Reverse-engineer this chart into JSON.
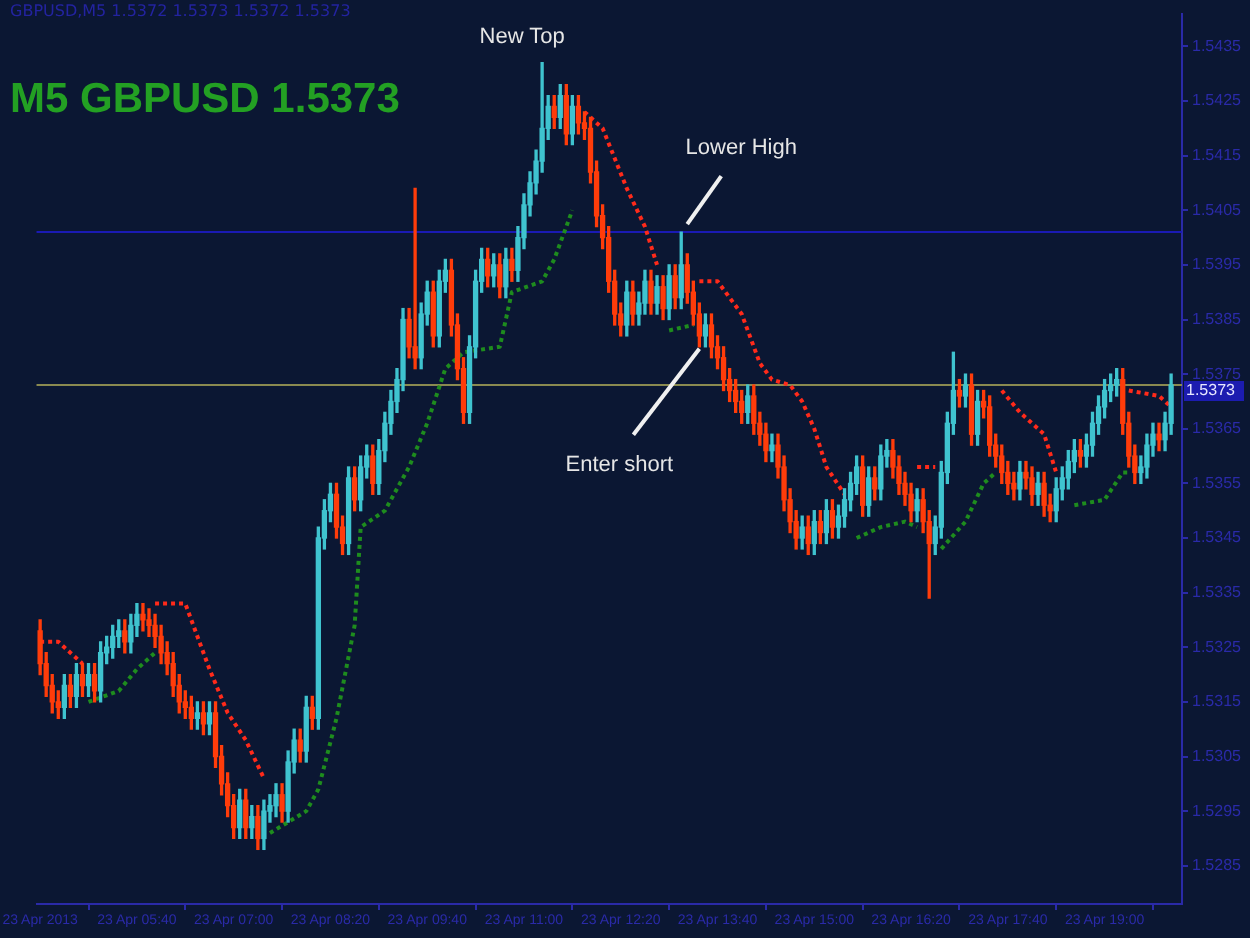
{
  "chart_data": {
    "type": "candlestick",
    "title": "M5 GBPUSD 1.5373",
    "subtitle": "GBPUSD,M5 1.5372 1.5373 1.5372 1.5373",
    "x": [
      "2013-04-23T04:20",
      "2013-04-23T04:25",
      "2013-04-23T04:30",
      "2013-04-23T04:35",
      "2013-04-23T04:40",
      "2013-04-23T04:45",
      "2013-04-23T04:50",
      "2013-04-23T04:55",
      "2013-04-23T05:00",
      "2013-04-23T05:05",
      "2013-04-23T05:10",
      "2013-04-23T05:15",
      "2013-04-23T05:20",
      "2013-04-23T05:25",
      "2013-04-23T05:30",
      "2013-04-23T05:35",
      "2013-04-23T05:40",
      "2013-04-23T05:45",
      "2013-04-23T05:50",
      "2013-04-23T05:55",
      "2013-04-23T06:00",
      "2013-04-23T06:05",
      "2013-04-23T06:10",
      "2013-04-23T06:15",
      "2013-04-23T06:20",
      "2013-04-23T06:25",
      "2013-04-23T06:30",
      "2013-04-23T06:35",
      "2013-04-23T06:40",
      "2013-04-23T06:45",
      "2013-04-23T06:50",
      "2013-04-23T06:55",
      "2013-04-23T07:00",
      "2013-04-23T07:05",
      "2013-04-23T07:10",
      "2013-04-23T07:15",
      "2013-04-23T07:20",
      "2013-04-23T07:25",
      "2013-04-23T07:30",
      "2013-04-23T07:35",
      "2013-04-23T07:40",
      "2013-04-23T07:45",
      "2013-04-23T07:50",
      "2013-04-23T07:55",
      "2013-04-23T08:00",
      "2013-04-23T08:05",
      "2013-04-23T08:10",
      "2013-04-23T08:15",
      "2013-04-23T08:20",
      "2013-04-23T08:25",
      "2013-04-23T08:30",
      "2013-04-23T08:35",
      "2013-04-23T08:40",
      "2013-04-23T08:45",
      "2013-04-23T08:50",
      "2013-04-23T08:55",
      "2013-04-23T09:00",
      "2013-04-23T09:05",
      "2013-04-23T09:10",
      "2013-04-23T09:15",
      "2013-04-23T09:20",
      "2013-04-23T09:25",
      "2013-04-23T09:30",
      "2013-04-23T09:35",
      "2013-04-23T09:40",
      "2013-04-23T09:45",
      "2013-04-23T09:50",
      "2013-04-23T09:55",
      "2013-04-23T10:00",
      "2013-04-23T10:05",
      "2013-04-23T10:10",
      "2013-04-23T10:15",
      "2013-04-23T10:20",
      "2013-04-23T10:25",
      "2013-04-23T10:30",
      "2013-04-23T10:35",
      "2013-04-23T10:40",
      "2013-04-23T10:45",
      "2013-04-23T10:50",
      "2013-04-23T10:55",
      "2013-04-23T11:00",
      "2013-04-23T11:05",
      "2013-04-23T11:10",
      "2013-04-23T11:15",
      "2013-04-23T11:20",
      "2013-04-23T11:25",
      "2013-04-23T11:30",
      "2013-04-23T11:35",
      "2013-04-23T11:40",
      "2013-04-23T11:45",
      "2013-04-23T11:50",
      "2013-04-23T11:55",
      "2013-04-23T12:00",
      "2013-04-23T12:05",
      "2013-04-23T12:10",
      "2013-04-23T12:15",
      "2013-04-23T12:20",
      "2013-04-23T12:25",
      "2013-04-23T12:30",
      "2013-04-23T12:35",
      "2013-04-23T12:40",
      "2013-04-23T12:45",
      "2013-04-23T12:50",
      "2013-04-23T12:55",
      "2013-04-23T13:00",
      "2013-04-23T13:05",
      "2013-04-23T13:10",
      "2013-04-23T13:15",
      "2013-04-23T13:20",
      "2013-04-23T13:25",
      "2013-04-23T13:30",
      "2013-04-23T13:35",
      "2013-04-23T13:40",
      "2013-04-23T13:45",
      "2013-04-23T13:50",
      "2013-04-23T13:55",
      "2013-04-23T14:00",
      "2013-04-23T14:05",
      "2013-04-23T14:10",
      "2013-04-23T14:15",
      "2013-04-23T14:20",
      "2013-04-23T14:25",
      "2013-04-23T14:30",
      "2013-04-23T14:35",
      "2013-04-23T14:40",
      "2013-04-23T14:45",
      "2013-04-23T14:50",
      "2013-04-23T14:55",
      "2013-04-23T15:00",
      "2013-04-23T15:05",
      "2013-04-23T15:10",
      "2013-04-23T15:15",
      "2013-04-23T15:20",
      "2013-04-23T15:25",
      "2013-04-23T15:30",
      "2013-04-23T15:35",
      "2013-04-23T15:40",
      "2013-04-23T15:45",
      "2013-04-23T15:50",
      "2013-04-23T15:55",
      "2013-04-23T16:00",
      "2013-04-23T16:05",
      "2013-04-23T16:10",
      "2013-04-23T16:15",
      "2013-04-23T16:20",
      "2013-04-23T16:25",
      "2013-04-23T16:30",
      "2013-04-23T16:35",
      "2013-04-23T16:40",
      "2013-04-23T16:45",
      "2013-04-23T16:50",
      "2013-04-23T16:55",
      "2013-04-23T17:00",
      "2013-04-23T17:05",
      "2013-04-23T17:10",
      "2013-04-23T17:15",
      "2013-04-23T17:20",
      "2013-04-23T17:25",
      "2013-04-23T17:30",
      "2013-04-23T17:35",
      "2013-04-23T17:40",
      "2013-04-23T17:45",
      "2013-04-23T17:50",
      "2013-04-23T17:55",
      "2013-04-23T18:00",
      "2013-04-23T18:05",
      "2013-04-23T18:10",
      "2013-04-23T18:15",
      "2013-04-23T18:20",
      "2013-04-23T18:25",
      "2013-04-23T18:30",
      "2013-04-23T18:35",
      "2013-04-23T18:40",
      "2013-04-23T18:45",
      "2013-04-23T18:50",
      "2013-04-23T18:55",
      "2013-04-23T19:00",
      "2013-04-23T19:05",
      "2013-04-23T19:10",
      "2013-04-23T19:15",
      "2013-04-23T19:20",
      "2013-04-23T19:25",
      "2013-04-23T19:30",
      "2013-04-23T19:35",
      "2013-04-23T19:40",
      "2013-04-23T19:45",
      "2013-04-23T19:50",
      "2013-04-23T19:55"
    ],
    "ohlc": [
      [
        1.5328,
        1.533,
        1.532,
        1.5322
      ],
      [
        1.5322,
        1.5324,
        1.5316,
        1.5318
      ],
      [
        1.5318,
        1.532,
        1.5313,
        1.5315
      ],
      [
        1.5315,
        1.5317,
        1.5312,
        1.5314
      ],
      [
        1.5314,
        1.532,
        1.5312,
        1.5318
      ],
      [
        1.5318,
        1.532,
        1.5314,
        1.5316
      ],
      [
        1.5316,
        1.5322,
        1.5314,
        1.532
      ],
      [
        1.532,
        1.5322,
        1.5316,
        1.5318
      ],
      [
        1.5318,
        1.5322,
        1.5316,
        1.532
      ],
      [
        1.532,
        1.5322,
        1.5315,
        1.5317
      ],
      [
        1.5317,
        1.5326,
        1.5315,
        1.5324
      ],
      [
        1.5324,
        1.5327,
        1.5322,
        1.5325
      ],
      [
        1.5325,
        1.5329,
        1.5323,
        1.5327
      ],
      [
        1.5327,
        1.533,
        1.5325,
        1.5328
      ],
      [
        1.5328,
        1.533,
        1.5324,
        1.5326
      ],
      [
        1.5326,
        1.5331,
        1.5324,
        1.5329
      ],
      [
        1.5329,
        1.5333,
        1.5327,
        1.5331
      ],
      [
        1.5331,
        1.5333,
        1.5328,
        1.533
      ],
      [
        1.533,
        1.5332,
        1.5327,
        1.5329
      ],
      [
        1.5329,
        1.5331,
        1.5325,
        1.5327
      ],
      [
        1.5327,
        1.5329,
        1.5322,
        1.5324
      ],
      [
        1.5324,
        1.5326,
        1.532,
        1.5322
      ],
      [
        1.5322,
        1.5324,
        1.5316,
        1.5318
      ],
      [
        1.5318,
        1.532,
        1.5313,
        1.5315
      ],
      [
        1.5315,
        1.5317,
        1.5312,
        1.5314
      ],
      [
        1.5314,
        1.5316,
        1.531,
        1.5312
      ],
      [
        1.5312,
        1.5315,
        1.531,
        1.5313
      ],
      [
        1.5313,
        1.5315,
        1.5309,
        1.5311
      ],
      [
        1.5311,
        1.5315,
        1.5309,
        1.5313
      ],
      [
        1.5313,
        1.5315,
        1.5303,
        1.5305
      ],
      [
        1.5305,
        1.5307,
        1.5298,
        1.53
      ],
      [
        1.53,
        1.5302,
        1.5294,
        1.5296
      ],
      [
        1.5296,
        1.5298,
        1.529,
        1.5292
      ],
      [
        1.5292,
        1.5299,
        1.529,
        1.5297
      ],
      [
        1.5297,
        1.5299,
        1.529,
        1.5292
      ],
      [
        1.5292,
        1.5296,
        1.529,
        1.5294
      ],
      [
        1.5294,
        1.5296,
        1.5288,
        1.529
      ],
      [
        1.529,
        1.5297,
        1.5288,
        1.5295
      ],
      [
        1.5295,
        1.5298,
        1.5293,
        1.5296
      ],
      [
        1.5296,
        1.53,
        1.5294,
        1.5298
      ],
      [
        1.5298,
        1.53,
        1.5293,
        1.5295
      ],
      [
        1.5295,
        1.5306,
        1.5293,
        1.5304
      ],
      [
        1.5304,
        1.531,
        1.5302,
        1.5308
      ],
      [
        1.5308,
        1.531,
        1.5304,
        1.5306
      ],
      [
        1.5306,
        1.5316,
        1.5304,
        1.5314
      ],
      [
        1.5314,
        1.5316,
        1.531,
        1.5312
      ],
      [
        1.5312,
        1.5347,
        1.531,
        1.5345
      ],
      [
        1.5345,
        1.5352,
        1.5343,
        1.535
      ],
      [
        1.535,
        1.5355,
        1.5348,
        1.5353
      ],
      [
        1.5353,
        1.5355,
        1.5345,
        1.5347
      ],
      [
        1.5347,
        1.5349,
        1.5342,
        1.5344
      ],
      [
        1.5344,
        1.5358,
        1.5342,
        1.5356
      ],
      [
        1.5356,
        1.5358,
        1.535,
        1.5352
      ],
      [
        1.5352,
        1.536,
        1.535,
        1.5358
      ],
      [
        1.5358,
        1.5362,
        1.5356,
        1.536
      ],
      [
        1.536,
        1.5362,
        1.5353,
        1.5355
      ],
      [
        1.5355,
        1.5363,
        1.5353,
        1.5361
      ],
      [
        1.5361,
        1.5368,
        1.5359,
        1.5366
      ],
      [
        1.5366,
        1.5372,
        1.5364,
        1.537
      ],
      [
        1.537,
        1.5376,
        1.5368,
        1.5374
      ],
      [
        1.5374,
        1.5387,
        1.5372,
        1.5385
      ],
      [
        1.5385,
        1.5387,
        1.5378,
        1.538
      ],
      [
        1.538,
        1.5409,
        1.5376,
        1.5378
      ],
      [
        1.5378,
        1.5388,
        1.5376,
        1.5386
      ],
      [
        1.5386,
        1.5392,
        1.5384,
        1.539
      ],
      [
        1.539,
        1.5392,
        1.538,
        1.5382
      ],
      [
        1.5382,
        1.5394,
        1.538,
        1.5392
      ],
      [
        1.5392,
        1.5396,
        1.539,
        1.5394
      ],
      [
        1.5394,
        1.5396,
        1.5382,
        1.5384
      ],
      [
        1.5384,
        1.5386,
        1.5374,
        1.5376
      ],
      [
        1.5376,
        1.5378,
        1.5366,
        1.5368
      ],
      [
        1.5368,
        1.5382,
        1.5366,
        1.538
      ],
      [
        1.538,
        1.5394,
        1.5378,
        1.5392
      ],
      [
        1.5392,
        1.5398,
        1.539,
        1.5396
      ],
      [
        1.5396,
        1.5398,
        1.5391,
        1.5393
      ],
      [
        1.5393,
        1.5397,
        1.5391,
        1.5395
      ],
      [
        1.5395,
        1.5397,
        1.5389,
        1.5391
      ],
      [
        1.5391,
        1.5398,
        1.5389,
        1.5396
      ],
      [
        1.5396,
        1.5398,
        1.5392,
        1.5394
      ],
      [
        1.5394,
        1.5402,
        1.5392,
        1.54
      ],
      [
        1.54,
        1.5408,
        1.5398,
        1.5406
      ],
      [
        1.5406,
        1.5412,
        1.5404,
        1.541
      ],
      [
        1.541,
        1.5416,
        1.5408,
        1.5414
      ],
      [
        1.5414,
        1.5432,
        1.5412,
        1.542
      ],
      [
        1.542,
        1.5426,
        1.5418,
        1.5424
      ],
      [
        1.5424,
        1.5426,
        1.542,
        1.5422
      ],
      [
        1.5422,
        1.5428,
        1.542,
        1.5426
      ],
      [
        1.5426,
        1.5428,
        1.5417,
        1.5419
      ],
      [
        1.5419,
        1.5426,
        1.5417,
        1.5424
      ],
      [
        1.5424,
        1.5426,
        1.5419,
        1.5421
      ],
      [
        1.5421,
        1.5423,
        1.5418,
        1.542
      ],
      [
        1.542,
        1.5422,
        1.541,
        1.5412
      ],
      [
        1.5412,
        1.5414,
        1.5402,
        1.5404
      ],
      [
        1.5404,
        1.5406,
        1.5398,
        1.54
      ],
      [
        1.54,
        1.5402,
        1.539,
        1.5392
      ],
      [
        1.5392,
        1.5394,
        1.5384,
        1.5386
      ],
      [
        1.5386,
        1.5388,
        1.5382,
        1.5384
      ],
      [
        1.5384,
        1.5392,
        1.5382,
        1.539
      ],
      [
        1.539,
        1.5392,
        1.5384,
        1.5386
      ],
      [
        1.5386,
        1.539,
        1.5384,
        1.5388
      ],
      [
        1.5388,
        1.5394,
        1.5386,
        1.5392
      ],
      [
        1.5392,
        1.5394,
        1.5386,
        1.5388
      ],
      [
        1.5388,
        1.5393,
        1.5386,
        1.5391
      ],
      [
        1.5391,
        1.5393,
        1.5385,
        1.5387
      ],
      [
        1.5387,
        1.5395,
        1.5385,
        1.5393
      ],
      [
        1.5393,
        1.5395,
        1.5387,
        1.5389
      ],
      [
        1.5389,
        1.5401,
        1.5387,
        1.5395
      ],
      [
        1.5395,
        1.5397,
        1.5388,
        1.539
      ],
      [
        1.539,
        1.5392,
        1.5384,
        1.5386
      ],
      [
        1.5386,
        1.5388,
        1.538,
        1.5382
      ],
      [
        1.5382,
        1.5386,
        1.538,
        1.5384
      ],
      [
        1.5384,
        1.5386,
        1.5378,
        1.538
      ],
      [
        1.538,
        1.5382,
        1.5376,
        1.5378
      ],
      [
        1.5378,
        1.538,
        1.5372,
        1.5374
      ],
      [
        1.5374,
        1.5376,
        1.537,
        1.5372
      ],
      [
        1.5372,
        1.5374,
        1.5368,
        1.537
      ],
      [
        1.537,
        1.5372,
        1.5366,
        1.5368
      ],
      [
        1.5368,
        1.5373,
        1.5366,
        1.5371
      ],
      [
        1.5371,
        1.5373,
        1.5364,
        1.5366
      ],
      [
        1.5366,
        1.5368,
        1.5362,
        1.5364
      ],
      [
        1.5364,
        1.5366,
        1.5359,
        1.5361
      ],
      [
        1.5361,
        1.5364,
        1.5359,
        1.5362
      ],
      [
        1.5362,
        1.5364,
        1.5356,
        1.5358
      ],
      [
        1.5358,
        1.536,
        1.535,
        1.5352
      ],
      [
        1.5352,
        1.5354,
        1.5346,
        1.5348
      ],
      [
        1.5348,
        1.535,
        1.5343,
        1.5345
      ],
      [
        1.5345,
        1.5349,
        1.5343,
        1.5347
      ],
      [
        1.5347,
        1.5349,
        1.5342,
        1.5344
      ],
      [
        1.5344,
        1.535,
        1.5342,
        1.5348
      ],
      [
        1.5348,
        1.535,
        1.5344,
        1.5346
      ],
      [
        1.5346,
        1.5352,
        1.5344,
        1.535
      ],
      [
        1.535,
        1.5352,
        1.5345,
        1.5347
      ],
      [
        1.5347,
        1.5351,
        1.5345,
        1.5349
      ],
      [
        1.5349,
        1.5354,
        1.5347,
        1.5352
      ],
      [
        1.5352,
        1.5357,
        1.535,
        1.5355
      ],
      [
        1.5355,
        1.536,
        1.5353,
        1.5358
      ],
      [
        1.5358,
        1.536,
        1.5349,
        1.5351
      ],
      [
        1.5351,
        1.5358,
        1.5349,
        1.5356
      ],
      [
        1.5356,
        1.5358,
        1.5352,
        1.5354
      ],
      [
        1.5354,
        1.5362,
        1.5352,
        1.536
      ],
      [
        1.536,
        1.5363,
        1.5358,
        1.5361
      ],
      [
        1.5361,
        1.5363,
        1.5356,
        1.5358
      ],
      [
        1.5358,
        1.536,
        1.5353,
        1.5355
      ],
      [
        1.5355,
        1.5357,
        1.5351,
        1.5353
      ],
      [
        1.5353,
        1.5355,
        1.5348,
        1.535
      ],
      [
        1.535,
        1.5354,
        1.5348,
        1.5352
      ],
      [
        1.5352,
        1.5354,
        1.5346,
        1.5348
      ],
      [
        1.5348,
        1.535,
        1.5334,
        1.5344
      ],
      [
        1.5344,
        1.5349,
        1.5342,
        1.5347
      ],
      [
        1.5347,
        1.5359,
        1.5345,
        1.5357
      ],
      [
        1.5357,
        1.5368,
        1.5355,
        1.5366
      ],
      [
        1.5366,
        1.5379,
        1.5364,
        1.5372
      ],
      [
        1.5372,
        1.5374,
        1.5369,
        1.5371
      ],
      [
        1.5371,
        1.5375,
        1.5369,
        1.5373
      ],
      [
        1.5373,
        1.5375,
        1.5362,
        1.5364
      ],
      [
        1.5364,
        1.5372,
        1.5362,
        1.537
      ],
      [
        1.537,
        1.5372,
        1.5367,
        1.5369
      ],
      [
        1.5369,
        1.5371,
        1.536,
        1.5362
      ],
      [
        1.5362,
        1.5364,
        1.5358,
        1.536
      ],
      [
        1.536,
        1.5362,
        1.5355,
        1.5357
      ],
      [
        1.5357,
        1.5359,
        1.5353,
        1.5355
      ],
      [
        1.5355,
        1.5357,
        1.5352,
        1.5354
      ],
      [
        1.5354,
        1.5359,
        1.5352,
        1.5357
      ],
      [
        1.5357,
        1.5359,
        1.5354,
        1.5356
      ],
      [
        1.5356,
        1.5358,
        1.5351,
        1.5353
      ],
      [
        1.5353,
        1.5357,
        1.5351,
        1.5355
      ],
      [
        1.5355,
        1.5357,
        1.5349,
        1.5351
      ],
      [
        1.5351,
        1.5353,
        1.5348,
        1.535
      ],
      [
        1.535,
        1.5356,
        1.5348,
        1.5354
      ],
      [
        1.5354,
        1.5358,
        1.5352,
        1.5356
      ],
      [
        1.5356,
        1.5361,
        1.5354,
        1.5359
      ],
      [
        1.5359,
        1.5363,
        1.5357,
        1.5361
      ],
      [
        1.5361,
        1.5363,
        1.5358,
        1.536
      ],
      [
        1.536,
        1.5364,
        1.5358,
        1.5362
      ],
      [
        1.5362,
        1.5368,
        1.536,
        1.5366
      ],
      [
        1.5366,
        1.5371,
        1.5364,
        1.5369
      ],
      [
        1.5369,
        1.5374,
        1.5367,
        1.5372
      ],
      [
        1.5372,
        1.5375,
        1.537,
        1.5373
      ],
      [
        1.5373,
        1.5376,
        1.5371,
        1.5374
      ],
      [
        1.5374,
        1.5376,
        1.5364,
        1.5366
      ],
      [
        1.5366,
        1.5368,
        1.5358,
        1.536
      ],
      [
        1.536,
        1.5362,
        1.5355,
        1.5357
      ],
      [
        1.5357,
        1.536,
        1.5355,
        1.5358
      ],
      [
        1.5358,
        1.5364,
        1.5356,
        1.5362
      ],
      [
        1.5362,
        1.5366,
        1.536,
        1.5364
      ],
      [
        1.5364,
        1.5366,
        1.5361,
        1.5363
      ],
      [
        1.5363,
        1.5368,
        1.5361,
        1.5366
      ],
      [
        1.5366,
        1.5375,
        1.5364,
        1.5373
      ]
    ],
    "series": [
      {
        "type": "line",
        "color": "#ff2a1a",
        "x": [
          "2013-04-23T04:20",
          "2013-04-23T04:35",
          "2013-04-23T04:45",
          "2013-04-23T04:55"
        ],
        "values": [
          1.5326,
          1.5326,
          1.5324,
          1.5322
        ]
      },
      {
        "type": "line",
        "color": "#ff2a1a",
        "x": [
          "2013-04-23T05:55",
          "2013-04-23T06:20",
          "2013-04-23T06:40",
          "2013-04-23T06:55",
          "2013-04-23T07:10",
          "2013-04-23T07:25"
        ],
        "values": [
          1.5333,
          1.5333,
          1.5321,
          1.5313,
          1.5308,
          1.5301
        ]
      },
      {
        "type": "line",
        "color": "#ff2a1a",
        "x": [
          "2013-04-23T11:50",
          "2013-04-23T12:05",
          "2013-04-23T12:25",
          "2013-04-23T12:40",
          "2013-04-23T12:50"
        ],
        "values": [
          1.5423,
          1.542,
          1.5409,
          1.5402,
          1.5395
        ]
      },
      {
        "type": "line",
        "color": "#ff2a1a",
        "x": [
          "2013-04-23T13:25",
          "2013-04-23T13:40",
          "2013-04-23T14:00",
          "2013-04-23T14:15",
          "2013-04-23T14:25",
          "2013-04-23T14:40",
          "2013-04-23T14:50",
          "2013-04-23T15:00",
          "2013-04-23T15:10",
          "2013-04-23T15:25"
        ],
        "values": [
          1.5392,
          1.5392,
          1.5386,
          1.5377,
          1.5374,
          1.5373,
          1.537,
          1.5365,
          1.5358,
          1.5353
        ]
      },
      {
        "type": "line",
        "color": "#ff2a1a",
        "x": [
          "2013-04-23T16:25",
          "2013-04-23T16:40"
        ],
        "values": [
          1.5358,
          1.5358
        ]
      },
      {
        "type": "line",
        "color": "#ff2a1a",
        "x": [
          "2013-04-23T17:35",
          "2013-04-23T17:50",
          "2013-04-23T17:55",
          "2013-04-23T18:10",
          "2013-04-23T18:20"
        ],
        "values": [
          1.5372,
          1.5368,
          1.5367,
          1.5364,
          1.5357
        ]
      },
      {
        "type": "line",
        "color": "#ff2a1a",
        "x": [
          "2013-04-23T19:20",
          "2013-04-23T19:45",
          "2013-04-23T19:55"
        ],
        "values": [
          1.5372,
          1.5371,
          1.5369
        ]
      },
      {
        "type": "line",
        "color": "#1e8c1e",
        "x": [
          "2013-04-23T05:00",
          "2013-04-23T05:25",
          "2013-04-23T05:40",
          "2013-04-23T05:55"
        ],
        "values": [
          1.5315,
          1.5317,
          1.5321,
          1.5324
        ]
      },
      {
        "type": "line",
        "color": "#1e8c1e",
        "x": [
          "2013-04-23T07:30",
          "2013-04-23T08:00",
          "2013-04-23T08:10",
          "2013-04-23T08:25",
          "2013-04-23T08:40",
          "2013-04-23T08:45",
          "2013-04-23T09:05",
          "2013-04-23T09:25",
          "2013-04-23T09:40",
          "2013-04-23T09:55",
          "2013-04-23T10:10",
          "2013-04-23T10:40",
          "2013-04-23T10:50",
          "2013-04-23T11:15",
          "2013-04-23T11:25",
          "2013-04-23T11:40"
        ],
        "values": [
          1.5291,
          1.5295,
          1.5299,
          1.5312,
          1.5329,
          1.5347,
          1.535,
          1.5358,
          1.5366,
          1.5376,
          1.5379,
          1.538,
          1.539,
          1.5392,
          1.5396,
          1.5405
        ]
      },
      {
        "type": "line",
        "color": "#1e8c1e",
        "x": [
          "2013-04-23T13:00",
          "2013-04-23T13:20"
        ],
        "values": [
          1.5383,
          1.5384
        ]
      },
      {
        "type": "line",
        "color": "#1e8c1e",
        "x": [
          "2013-04-23T15:35",
          "2013-04-23T15:55",
          "2013-04-23T16:15",
          "2013-04-23T16:25"
        ],
        "values": [
          1.5345,
          1.5347,
          1.5348,
          1.5347
        ]
      },
      {
        "type": "line",
        "color": "#1e8c1e",
        "x": [
          "2013-04-23T16:45",
          "2013-04-23T17:05",
          "2013-04-23T17:20",
          "2013-04-23T17:30"
        ],
        "values": [
          1.5343,
          1.5348,
          1.5355,
          1.5357
        ]
      },
      {
        "type": "line",
        "color": "#1e8c1e",
        "x": [
          "2013-04-23T18:35",
          "2013-04-23T19:00",
          "2013-04-23T19:15",
          "2013-04-23T19:20"
        ],
        "values": [
          1.5351,
          1.5352,
          1.5357,
          1.5357
        ]
      }
    ],
    "xlim": [
      "2013-04-23T04:17",
      "2013-04-23T20:04"
    ],
    "xticks": [
      {
        "value": "2013-04-23T04:20",
        "label": "23 Apr 2013"
      },
      {
        "value": "2013-04-23T05:40",
        "label": "23 Apr 05:40"
      },
      {
        "value": "2013-04-23T07:00",
        "label": "23 Apr 07:00"
      },
      {
        "value": "2013-04-23T08:20",
        "label": "23 Apr 08:20"
      },
      {
        "value": "2013-04-23T09:40",
        "label": "23 Apr 09:40"
      },
      {
        "value": "2013-04-23T11:00",
        "label": "23 Apr 11:00"
      },
      {
        "value": "2013-04-23T12:20",
        "label": "23 Apr 12:20"
      },
      {
        "value": "2013-04-23T13:40",
        "label": "23 Apr 13:40"
      },
      {
        "value": "2013-04-23T15:00",
        "label": "23 Apr 15:00"
      },
      {
        "value": "2013-04-23T16:20",
        "label": "23 Apr 16:20"
      },
      {
        "value": "2013-04-23T17:40",
        "label": "23 Apr 17:40"
      },
      {
        "value": "2013-04-23T19:00",
        "label": "23 Apr 19:00"
      }
    ],
    "ylim": [
      1.5278,
      1.5441
    ],
    "yticks": [
      1.5285,
      1.5295,
      1.5305,
      1.5315,
      1.5325,
      1.5335,
      1.5345,
      1.5355,
      1.5365,
      1.5375,
      1.5385,
      1.5395,
      1.5405,
      1.5415,
      1.5425,
      1.5435
    ],
    "ref_lines": [
      {
        "axis": "y",
        "value": 1.5373,
        "label": "1.5373",
        "color": "#8a8a50"
      },
      {
        "axis": "y",
        "value": 1.5401,
        "color": "#1a1ab4"
      }
    ],
    "annotations": [
      {
        "text": "New Top",
        "x": "2013-04-23T11:15",
        "y": 1.5432
      },
      {
        "text": "Lower High",
        "x": "2013-04-23T13:10",
        "y": 1.5401
      },
      {
        "text": "Enter short",
        "x": "2013-04-23T13:25",
        "y": 1.538
      }
    ],
    "line_style": "dotted",
    "grid": false,
    "legend": false
  }
}
